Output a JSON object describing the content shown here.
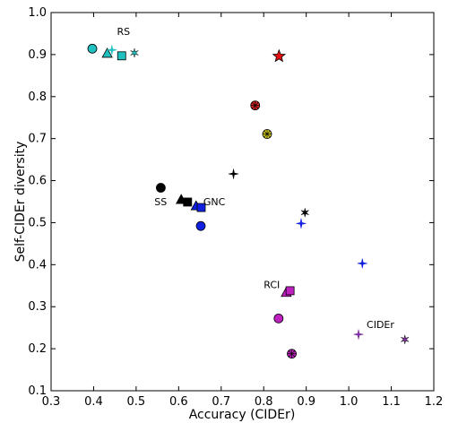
{
  "chart_data": {
    "type": "scatter",
    "xlabel": "Accuracy (CIDEr)",
    "ylabel": "Self-CIDEr diversity",
    "xlim": [
      0.3,
      1.2
    ],
    "ylim": [
      0.1,
      1.0
    ],
    "xticks": [
      "0.3",
      "0.4",
      "0.5",
      "0.6",
      "0.7",
      "0.8",
      "0.9",
      "1.0",
      "1.1",
      "1.2"
    ],
    "yticks": [
      "0.1",
      "0.2",
      "0.3",
      "0.4",
      "0.5",
      "0.6",
      "0.7",
      "0.8",
      "0.9",
      "1.0"
    ],
    "grid": false,
    "legend": "none",
    "annotations": [
      {
        "text": "RS",
        "x": 0.455,
        "y": 0.947
      },
      {
        "text": "SS",
        "x": 0.543,
        "y": 0.542
      },
      {
        "text": "GNC",
        "x": 0.658,
        "y": 0.542
      },
      {
        "text": "RCI",
        "x": 0.8,
        "y": 0.344
      },
      {
        "text": "CIDEr",
        "x": 1.042,
        "y": 0.249
      }
    ],
    "points": [
      {
        "x": 0.397,
        "y": 0.914,
        "marker": "circle",
        "color": "#20c0c0"
      },
      {
        "x": 0.432,
        "y": 0.902,
        "marker": "triangle",
        "color": "#20c0c0"
      },
      {
        "x": 0.443,
        "y": 0.911,
        "marker": "star4",
        "color": "#20c0c0"
      },
      {
        "x": 0.466,
        "y": 0.897,
        "marker": "square",
        "color": "#20c0c0"
      },
      {
        "x": 0.496,
        "y": 0.904,
        "marker": "asterisk",
        "color": "#20c0c0"
      },
      {
        "x": 0.836,
        "y": 0.896,
        "marker": "star5",
        "color": "#e81010"
      },
      {
        "x": 0.78,
        "y": 0.779,
        "marker": "circle-cross",
        "color": "#e02020"
      },
      {
        "x": 0.808,
        "y": 0.711,
        "marker": "circle-cross",
        "color": "#d8d020"
      },
      {
        "x": 0.729,
        "y": 0.616,
        "marker": "star4",
        "color": "#000000"
      },
      {
        "x": 0.558,
        "y": 0.583,
        "marker": "circle",
        "color": "#000000"
      },
      {
        "x": 0.606,
        "y": 0.554,
        "marker": "triangle",
        "color": "#000000"
      },
      {
        "x": 0.621,
        "y": 0.549,
        "marker": "square",
        "color": "#000000"
      },
      {
        "x": 0.641,
        "y": 0.539,
        "marker": "triangle",
        "color": "#1020e0"
      },
      {
        "x": 0.653,
        "y": 0.536,
        "marker": "square",
        "color": "#1020e0"
      },
      {
        "x": 0.652,
        "y": 0.492,
        "marker": "circle",
        "color": "#1020e0"
      },
      {
        "x": 0.897,
        "y": 0.524,
        "marker": "asterisk",
        "color": "#000000"
      },
      {
        "x": 0.888,
        "y": 0.498,
        "marker": "star4",
        "color": "#1020e0"
      },
      {
        "x": 1.032,
        "y": 0.403,
        "marker": "star4",
        "color": "#1020e0"
      },
      {
        "x": 0.853,
        "y": 0.333,
        "marker": "triangle",
        "color": "#c020c0"
      },
      {
        "x": 0.862,
        "y": 0.338,
        "marker": "square",
        "color": "#c020c0"
      },
      {
        "x": 0.835,
        "y": 0.272,
        "marker": "circle",
        "color": "#c020c0"
      },
      {
        "x": 0.866,
        "y": 0.188,
        "marker": "circle-cross",
        "color": "#c020c0"
      },
      {
        "x": 1.023,
        "y": 0.234,
        "marker": "star4",
        "color": "#8030a0"
      },
      {
        "x": 1.132,
        "y": 0.222,
        "marker": "asterisk",
        "color": "#8030a0"
      }
    ]
  }
}
